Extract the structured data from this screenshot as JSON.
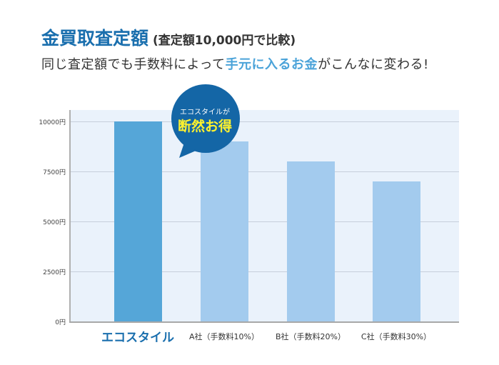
{
  "header": {
    "title": "金買取査定額",
    "subtitle": "(査定額10,000円で比較)",
    "lead_before": "同じ査定額でも手数料によって",
    "lead_highlight": "手元に入るお金",
    "lead_after": "がこんなに変わる!"
  },
  "callout": {
    "line1": "エコスタイルが",
    "line2": "断然お得",
    "bg_color": "#1466a6",
    "text_color": "#fff22e"
  },
  "colors": {
    "highlight_bar": "#55a6d8",
    "other_bar": "#a3cbee",
    "plot_bg": "#eaf2fb",
    "title": "#1a6fae"
  },
  "chart_data": {
    "type": "bar",
    "title": "金買取査定額 (査定額10,000円で比較)",
    "subtitle": "同じ査定額でも手数料によって手元に入るお金がこんなに変わる!",
    "categories": [
      "エコスタイル",
      "A社（手数料10%）",
      "B社（手数料20%）",
      "C社（手数料30%）"
    ],
    "values": [
      10000,
      9000,
      8000,
      7000
    ],
    "xlabel": "",
    "ylabel": "",
    "ylim": [
      0,
      11000
    ],
    "yticks": [
      "0円",
      "2500円",
      "5000円",
      "7500円",
      "10000円"
    ],
    "grid": true,
    "legend": "none",
    "annotation": "エコスタイルが 断然お得"
  }
}
